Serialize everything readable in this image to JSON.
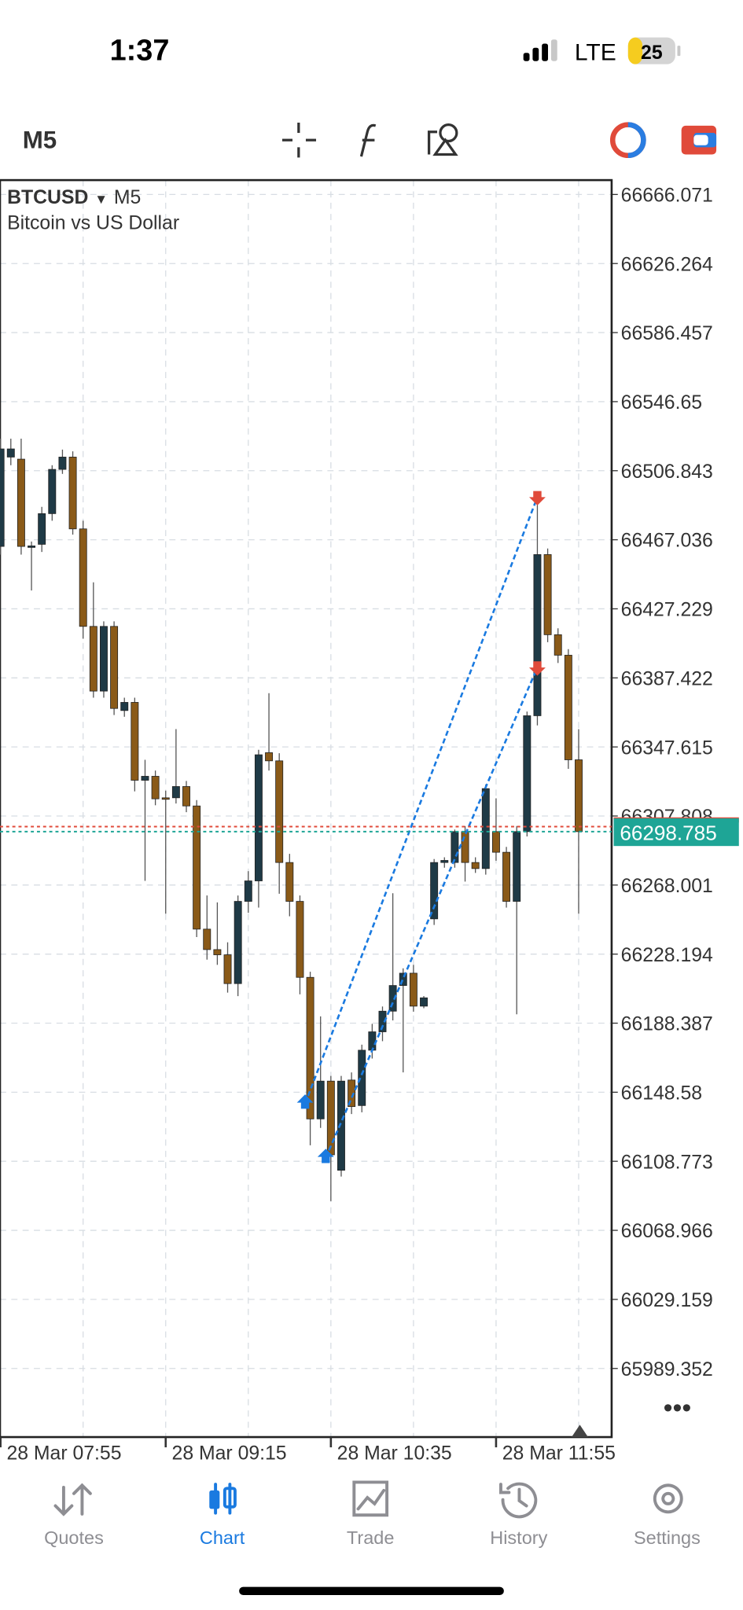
{
  "status_bar": {
    "time": "1:37",
    "network": "LTE",
    "battery": "25"
  },
  "toolbar": {
    "timeframe": "M5"
  },
  "chart": {
    "symbol": "BTCUSD",
    "timeframe": "M5",
    "description": "Bitcoin vs US Dollar",
    "ylim": [
      65949.8,
      66674.35
    ],
    "yticks": [
      66666.071,
      66626.264,
      66586.457,
      66546.65,
      66506.843,
      66467.036,
      66427.229,
      66387.422,
      66347.615,
      66307.808,
      66268.001,
      66228.194,
      66188.387,
      66148.58,
      66108.773,
      66068.966,
      66029.159,
      65989.352
    ],
    "current_price": 66298.785,
    "ask_price": 66301.7,
    "time_labels": [
      "28 Mar 07:55",
      "28 Mar 09:15",
      "28 Mar 10:35",
      "28 Mar 11:55"
    ],
    "bull_color": "#1f3a46",
    "bear_color": "#8a5a18",
    "candles": [
      {
        "open": 66463.2,
        "high": 66525.3,
        "low": 66458.5,
        "close": 66519.4
      },
      {
        "open": 66514.7,
        "high": 66525.3,
        "low": 66510,
        "close": 66519.4
      },
      {
        "open": 66513.5,
        "high": 66525.3,
        "low": 66458.5,
        "close": 66463.2
      },
      {
        "open": 66463.2,
        "high": 66466,
        "low": 66437.8,
        "close": 66463.5
      },
      {
        "open": 66464.4,
        "high": 66486,
        "low": 66460,
        "close": 66482.1
      },
      {
        "open": 66482.1,
        "high": 66510,
        "low": 66478,
        "close": 66507.6
      },
      {
        "open": 66507.6,
        "high": 66519,
        "low": 66505,
        "close": 66514.7
      },
      {
        "open": 66514.7,
        "high": 66518,
        "low": 66470,
        "close": 66473.3
      },
      {
        "open": 66473.3,
        "high": 66478,
        "low": 66410,
        "close": 66417.1
      },
      {
        "open": 66417.1,
        "high": 66442.5,
        "low": 66376,
        "close": 66379.8
      },
      {
        "open": 66379.8,
        "high": 66420,
        "low": 66376,
        "close": 66417.1
      },
      {
        "open": 66417.1,
        "high": 66420,
        "low": 66366,
        "close": 66369.8
      },
      {
        "open": 66368.6,
        "high": 66376,
        "low": 66365,
        "close": 66373.3
      },
      {
        "open": 66373.3,
        "high": 66376,
        "low": 66322,
        "close": 66328.4
      },
      {
        "open": 66328.4,
        "high": 66340.2,
        "low": 66270.4,
        "close": 66330.7
      },
      {
        "open": 66330.7,
        "high": 66334,
        "low": 66314,
        "close": 66317.7
      },
      {
        "open": 66318.3,
        "high": 66322.4,
        "low": 66251.5,
        "close": 66318
      },
      {
        "open": 66318.3,
        "high": 66357.9,
        "low": 66315,
        "close": 66324.8
      },
      {
        "open": 66324.8,
        "high": 66328,
        "low": 66310,
        "close": 66313.6
      },
      {
        "open": 66313.6,
        "high": 66317,
        "low": 66238,
        "close": 66242.6
      },
      {
        "open": 66242.6,
        "high": 66262,
        "low": 66225,
        "close": 66230.8
      },
      {
        "open": 66230.8,
        "high": 66258,
        "low": 66222,
        "close": 66227.8
      },
      {
        "open": 66227.8,
        "high": 66235,
        "low": 66206,
        "close": 66211.2
      },
      {
        "open": 66211.2,
        "high": 66262,
        "low": 66204,
        "close": 66258.6
      },
      {
        "open": 66258.6,
        "high": 66276,
        "low": 66252,
        "close": 66270.4
      },
      {
        "open": 66270.4,
        "high": 66346,
        "low": 66255,
        "close": 66343.1
      },
      {
        "open": 66344.3,
        "high": 66378.6,
        "low": 66334,
        "close": 66339.6
      },
      {
        "open": 66339.6,
        "high": 66344,
        "low": 66263,
        "close": 66281
      },
      {
        "open": 66281,
        "high": 66286,
        "low": 66250,
        "close": 66258.6
      },
      {
        "open": 66258.6,
        "high": 66262,
        "low": 66205,
        "close": 66214.8
      },
      {
        "open": 66214.8,
        "high": 66218,
        "low": 66118,
        "close": 66133.2
      },
      {
        "open": 66133.2,
        "high": 66192.3,
        "low": 66128,
        "close": 66155
      },
      {
        "open": 66155,
        "high": 66158,
        "low": 66085.8,
        "close": 66112.5
      },
      {
        "open": 66103.6,
        "high": 66158,
        "low": 66100,
        "close": 66155
      },
      {
        "open": 66155.6,
        "high": 66160,
        "low": 66136,
        "close": 66140.3
      },
      {
        "open": 66140.9,
        "high": 66176,
        "low": 66137,
        "close": 66172.8
      },
      {
        "open": 66172.8,
        "high": 66188,
        "low": 66168,
        "close": 66183.4
      },
      {
        "open": 66183.4,
        "high": 66198,
        "low": 66178,
        "close": 66195.3
      },
      {
        "open": 66195.3,
        "high": 66263.3,
        "low": 66190,
        "close": 66210.1
      },
      {
        "open": 66210.1,
        "high": 66220,
        "low": 66160,
        "close": 66217.2
      },
      {
        "open": 66217.2,
        "high": 66222,
        "low": 66195,
        "close": 66198.2
      },
      {
        "open": 66198.2,
        "high": 66204,
        "low": 66197,
        "close": 66203
      },
      {
        "open": 66248.5,
        "high": 66283,
        "low": 66245,
        "close": 66281
      },
      {
        "open": 66281,
        "high": 66284,
        "low": 66278,
        "close": 66282.2
      },
      {
        "open": 66281,
        "high": 66300,
        "low": 66278,
        "close": 66298.8
      },
      {
        "open": 66298.8,
        "high": 66302,
        "low": 66270,
        "close": 66281
      },
      {
        "open": 66281,
        "high": 66284,
        "low": 66275,
        "close": 66277.5
      },
      {
        "open": 66277.5,
        "high": 66326,
        "low": 66274,
        "close": 66323.6
      },
      {
        "open": 66298.8,
        "high": 66318,
        "low": 66282,
        "close": 66286.9
      },
      {
        "open": 66286.9,
        "high": 66290,
        "low": 66255,
        "close": 66258.6
      },
      {
        "open": 66258.6,
        "high": 66302,
        "low": 66193.5,
        "close": 66298.8
      },
      {
        "open": 66298.8,
        "high": 66368,
        "low": 66296,
        "close": 66365.6
      },
      {
        "open": 66365.6,
        "high": 66488.1,
        "low": 66360,
        "close": 66458.5
      },
      {
        "open": 66458.5,
        "high": 66462,
        "low": 66408,
        "close": 66412.3
      },
      {
        "open": 66412.3,
        "high": 66416,
        "low": 66396,
        "close": 66400.5
      },
      {
        "open": 66400.5,
        "high": 66404,
        "low": 66335,
        "close": 66340.2
      },
      {
        "open": 66340.2,
        "high": 66357.9,
        "low": 66251.5,
        "close": 66298.8
      }
    ],
    "trades": [
      {
        "open_index": 30,
        "open_price": 66142,
        "close_index": 52,
        "close_price": 66491.6
      },
      {
        "open_index": 32,
        "open_price": 66110.7,
        "close_index": 52,
        "close_price": 66393.4
      }
    ]
  },
  "tabs": {
    "items": [
      "Quotes",
      "Chart",
      "Trade",
      "History",
      "Settings"
    ],
    "active": 1
  }
}
